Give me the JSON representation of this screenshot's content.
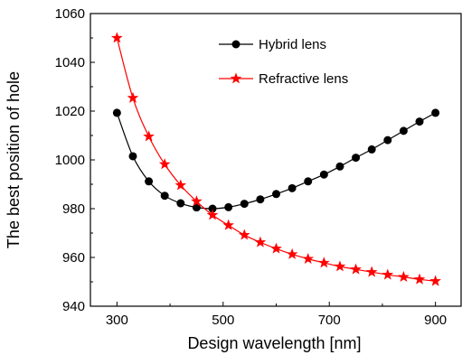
{
  "chart_data": {
    "type": "line",
    "title": "",
    "xlabel": "Design wavelength [nm]",
    "ylabel": "The best position of hole",
    "xlim": [
      250,
      950
    ],
    "ylim": [
      940,
      1060
    ],
    "x_ticks": [
      300,
      500,
      700,
      900
    ],
    "x_tick_labels": [
      "300",
      "500",
      "700",
      "900"
    ],
    "y_ticks": [
      940,
      960,
      980,
      1000,
      1020,
      1040,
      1060
    ],
    "y_tick_labels": [
      "940",
      "960",
      "980",
      "1000",
      "1020",
      "1040",
      "1060"
    ],
    "grid": false,
    "legend_position": "top-right",
    "series": [
      {
        "name": "Hybrid lens",
        "color": "#000000",
        "marker": "circle",
        "x": [
          300,
          330,
          360,
          390,
          420,
          450,
          480,
          510,
          540,
          570,
          600,
          630,
          660,
          690,
          720,
          750,
          780,
          810,
          840,
          870,
          900
        ],
        "values": [
          1019.3,
          1001.5,
          991.2,
          985.3,
          982.2,
          980.5,
          980.0,
          980.6,
          982.0,
          983.8,
          986.0,
          988.4,
          991.2,
          994.0,
          997.3,
          1000.9,
          1004.3,
          1008.1,
          1011.9,
          1015.7,
          1019.3
        ]
      },
      {
        "name": "Refractive lens",
        "color": "#ff0000",
        "marker": "star",
        "x": [
          300,
          330,
          360,
          390,
          420,
          450,
          480,
          510,
          540,
          570,
          600,
          630,
          660,
          690,
          720,
          750,
          780,
          810,
          840,
          870,
          900
        ],
        "values": [
          1050.0,
          1025.4,
          1009.6,
          998.2,
          989.6,
          983.0,
          977.4,
          973.2,
          969.2,
          966.2,
          963.6,
          961.3,
          959.4,
          957.8,
          956.3,
          955.1,
          954.0,
          952.9,
          952.0,
          951.0,
          950.3
        ]
      }
    ]
  }
}
